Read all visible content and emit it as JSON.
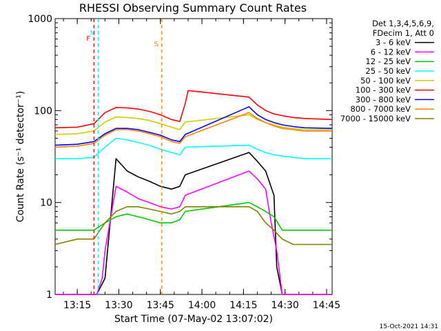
{
  "chart_data": {
    "type": "line",
    "title": "RHESSI Observing Summary Count Rates",
    "xlabel": "Start Time (07-May-02 13:07:02)",
    "ylabel": "Count Rate (s⁻¹ detector⁻¹)",
    "xlim_minutes": [
      0,
      100
    ],
    "x_tick_labels": [
      "13:15",
      "13:30",
      "13:45",
      "14:00",
      "14:15",
      "14:30",
      "14:45"
    ],
    "x_tick_minutes": [
      8,
      23,
      38,
      53,
      68,
      83,
      98
    ],
    "y_scale": "log",
    "ylim": [
      1,
      1000
    ],
    "y_tick_labels": [
      "1",
      "10",
      "100",
      "1000"
    ],
    "y_tick_values": [
      1,
      10,
      100,
      1000
    ],
    "legend_header": [
      "Det 1,3,4,5,6,9,",
      "FDecim 1, Att 0"
    ],
    "legend_placement": "right, outside",
    "series": [
      {
        "name": "3 - 6 keV",
        "color": "#000000",
        "x": [
          0,
          14,
          15,
          18,
          22,
          26,
          30,
          34,
          38,
          42,
          45,
          47,
          70,
          73,
          76,
          79,
          80,
          82,
          100
        ],
        "y": [
          1,
          1,
          1,
          1.5,
          30,
          22,
          19,
          17,
          15,
          14,
          15,
          20,
          35,
          28,
          22,
          12,
          2,
          1,
          1
        ]
      },
      {
        "name": "6 - 12 keV",
        "color": "#ff00ff",
        "x": [
          0,
          15,
          17,
          18,
          22,
          26,
          30,
          34,
          38,
          42,
          45,
          47,
          70,
          73,
          76,
          78,
          80,
          82,
          100
        ],
        "y": [
          1,
          1,
          1.5,
          3,
          15,
          13,
          11,
          10,
          9,
          8.5,
          9,
          12,
          22,
          18,
          14,
          6,
          3,
          1,
          1
        ]
      },
      {
        "name": "12 - 25 keV",
        "color": "#00cc00",
        "x": [
          0,
          8,
          14,
          18,
          22,
          26,
          30,
          34,
          38,
          42,
          45,
          47,
          70,
          73,
          76,
          79,
          82,
          86,
          90,
          100
        ],
        "y": [
          5,
          5,
          5,
          6,
          7,
          7.5,
          7,
          6.5,
          6,
          6,
          6.5,
          8,
          10,
          9,
          8,
          7,
          5,
          5,
          5,
          5
        ]
      },
      {
        "name": "25 - 50 keV",
        "color": "#00ffff",
        "x": [
          0,
          8,
          14,
          18,
          22,
          26,
          30,
          34,
          38,
          42,
          45,
          47,
          70,
          73,
          76,
          79,
          82,
          86,
          90,
          100
        ],
        "y": [
          30,
          30,
          31,
          40,
          50,
          48,
          45,
          42,
          38,
          35,
          33,
          40,
          42,
          38,
          35,
          33,
          32,
          31,
          30,
          30
        ]
      },
      {
        "name": "50 - 100 keV",
        "color": "#cccc00",
        "x": [
          0,
          8,
          14,
          18,
          22,
          26,
          30,
          34,
          38,
          42,
          45,
          47,
          70,
          73,
          76,
          79,
          82,
          86,
          90,
          100
        ],
        "y": [
          55,
          56,
          60,
          75,
          85,
          84,
          82,
          78,
          72,
          66,
          62,
          75,
          90,
          80,
          74,
          70,
          66,
          64,
          62,
          62
        ]
      },
      {
        "name": "100 - 300 keV",
        "color": "#ff0000",
        "x": [
          0,
          8,
          14,
          18,
          22,
          26,
          30,
          34,
          38,
          42,
          45,
          47,
          48,
          70,
          73,
          76,
          79,
          82,
          86,
          90,
          100
        ],
        "y": [
          65,
          66,
          72,
          95,
          108,
          107,
          104,
          98,
          90,
          80,
          76,
          120,
          165,
          140,
          115,
          100,
          92,
          88,
          84,
          82,
          80
        ]
      },
      {
        "name": "300 - 800 keV",
        "color": "#0000ff",
        "x": [
          0,
          8,
          14,
          18,
          22,
          26,
          30,
          34,
          38,
          42,
          45,
          47,
          70,
          73,
          76,
          79,
          82,
          86,
          90,
          100
        ],
        "y": [
          42,
          43,
          46,
          56,
          64,
          64,
          62,
          58,
          54,
          48,
          46,
          55,
          110,
          90,
          80,
          74,
          70,
          67,
          65,
          64
        ]
      },
      {
        "name": "800 - 7000 keV",
        "color": "#ff8000",
        "x": [
          0,
          8,
          14,
          18,
          22,
          26,
          30,
          34,
          38,
          42,
          45,
          47,
          70,
          73,
          76,
          79,
          82,
          86,
          90,
          100
        ],
        "y": [
          40,
          41,
          44,
          54,
          62,
          62,
          60,
          56,
          52,
          46,
          44,
          52,
          95,
          82,
          74,
          68,
          64,
          62,
          60,
          60
        ]
      },
      {
        "name": "7000 - 15000 keV",
        "color": "#808000",
        "x": [
          0,
          8,
          14,
          18,
          22,
          26,
          30,
          34,
          38,
          42,
          45,
          47,
          70,
          73,
          76,
          79,
          82,
          86,
          90,
          100
        ],
        "y": [
          3.5,
          4,
          4,
          6,
          8,
          9,
          9,
          8.5,
          8,
          7.5,
          8,
          9,
          9,
          8,
          6,
          5,
          4,
          3.5,
          3.5,
          3.5
        ]
      }
    ],
    "annotations": [
      {
        "label": "N",
        "color": "#00ffff",
        "x_minutes": 15.5
      },
      {
        "label": "F",
        "color": "#ff0000",
        "x_minutes": 14
      },
      {
        "label": "S",
        "color": "#ff8000",
        "x_minutes": 38.5
      }
    ],
    "timestamp": "15-Oct-2021 14:31"
  }
}
